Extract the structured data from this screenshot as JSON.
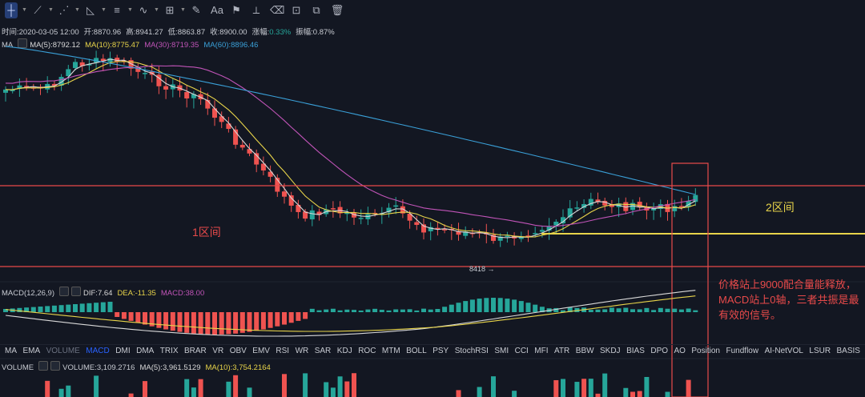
{
  "toolbar": {
    "tools": [
      {
        "name": "crosshair-icon",
        "glyph": "┼",
        "active": true
      },
      {
        "name": "trend-line-icon",
        "glyph": "⟋"
      },
      {
        "name": "fib-icon",
        "glyph": "⋰"
      },
      {
        "name": "triangle-icon",
        "glyph": "◺"
      },
      {
        "name": "lines-icon",
        "glyph": "≡"
      },
      {
        "name": "wave-icon",
        "glyph": "∿"
      },
      {
        "name": "measure-icon",
        "glyph": "⊞"
      },
      {
        "name": "brush-icon",
        "glyph": "✎"
      },
      {
        "name": "text-icon",
        "glyph": "Aa"
      },
      {
        "name": "marker-icon",
        "glyph": "⚑"
      },
      {
        "name": "ruler-icon",
        "glyph": "⟂"
      },
      {
        "name": "eraser-icon",
        "glyph": "⌫"
      },
      {
        "name": "lock-icon",
        "glyph": "⊡"
      },
      {
        "name": "copy-icon",
        "glyph": "⧉"
      },
      {
        "name": "trash-icon",
        "glyph": "🗑"
      }
    ]
  },
  "ohlc": {
    "time": "时间:2020-03-05 12:00",
    "open": "开:8870.96",
    "high": "高:8941.27",
    "low": "低:8863.87",
    "close": "收:8900.00",
    "change": "涨幅:0.33%",
    "amplitude": "振幅:0.87%"
  },
  "ma_legend": {
    "label": "MA",
    "ma5": "MA(5):8792.12",
    "ma10": "MA(10):8775.47",
    "ma30": "MA(30):8719.35",
    "ma60": "MA(60):8896.46"
  },
  "macd_legend": {
    "label": "MACD(12,26,9)",
    "dif": "DIF:7.64",
    "dea": "DEA:-11.35",
    "macd": "MACD:38.00"
  },
  "vol_legend": {
    "label": "VOLUME",
    "volume": "VOLUME:3,109.2716",
    "ma5": "MA(5):3,961.5129",
    "ma10": "MA(10):3,754.2164"
  },
  "indicator_tabs": [
    "MA",
    "EMA",
    "VOLUME",
    "MACD",
    "DMI",
    "DMA",
    "TRIX",
    "BRAR",
    "VR",
    "OBV",
    "EMV",
    "RSI",
    "WR",
    "SAR",
    "KDJ",
    "ROC",
    "MTM",
    "BOLL",
    "PSY",
    "StochRSI",
    "SMI",
    "CCI",
    "MFI",
    "ATR",
    "BBW",
    "SKDJ",
    "BIAS",
    "DPO",
    "AO",
    "Position",
    "Fundflow",
    "AI-NetVOL",
    "LSUR",
    "BASIS"
  ],
  "active_tab": "MACD",
  "muted_tab": "VOLUME",
  "annotations": {
    "zone1": "1区间",
    "zone2": "2区间",
    "note": "价格站上9000配合量能释放，MACD站上0轴，三者共振是最有效的信号。",
    "low_label": "8418 →"
  },
  "colors": {
    "up": "#26a69a",
    "down": "#ef5350",
    "ma5": "#d9d9d9",
    "ma10": "#e8d44a",
    "ma30": "#c154b8",
    "ma60": "#3aa0d8",
    "annotation_red": "#e84a4a",
    "annotation_yellow": "#e8d44a"
  }
}
